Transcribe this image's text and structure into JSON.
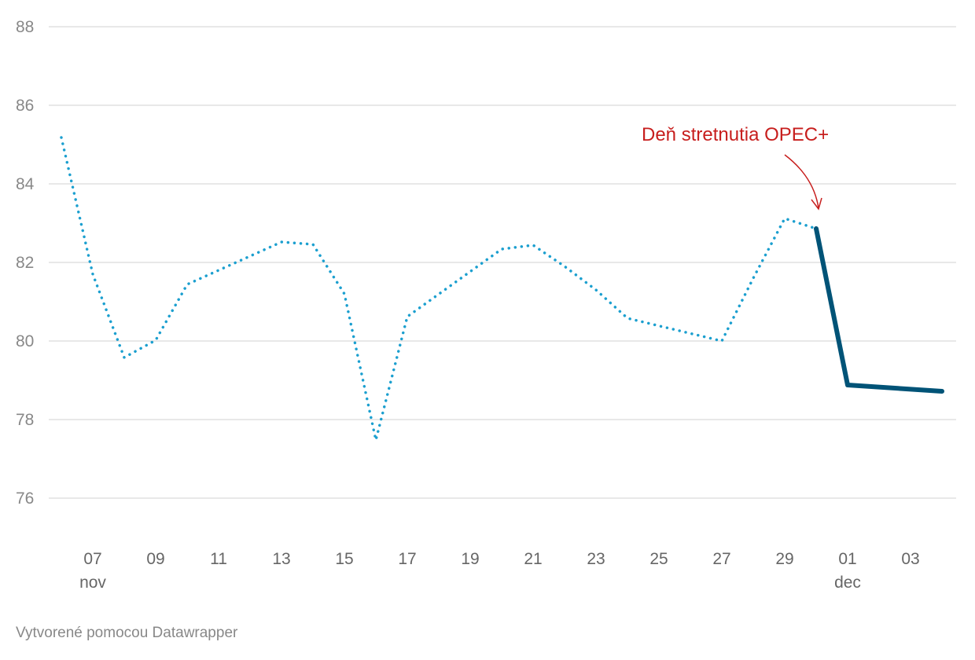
{
  "chart_data": {
    "type": "line",
    "title": "",
    "xlabel": "",
    "ylabel": "",
    "ylim": [
      76,
      88
    ],
    "y_ticks": [
      "88",
      "86",
      "84",
      "82",
      "80",
      "78",
      "76"
    ],
    "grid": true,
    "x_ticks": [
      {
        "day": "07",
        "month": "nov"
      },
      {
        "day": "09",
        "month": ""
      },
      {
        "day": "11",
        "month": ""
      },
      {
        "day": "13",
        "month": ""
      },
      {
        "day": "15",
        "month": ""
      },
      {
        "day": "17",
        "month": ""
      },
      {
        "day": "19",
        "month": ""
      },
      {
        "day": "21",
        "month": ""
      },
      {
        "day": "23",
        "month": ""
      },
      {
        "day": "25",
        "month": ""
      },
      {
        "day": "27",
        "month": ""
      },
      {
        "day": "29",
        "month": ""
      },
      {
        "day": "01",
        "month": "dec"
      },
      {
        "day": "03",
        "month": ""
      }
    ],
    "series": [
      {
        "style": "dotted",
        "color": "#1b9fcf",
        "x": [
          "nov 06",
          "nov 07",
          "nov 08",
          "nov 09",
          "nov 10",
          "nov 13",
          "nov 14",
          "nov 15",
          "nov 16",
          "nov 17",
          "nov 20",
          "nov 21",
          "nov 22",
          "nov 23",
          "nov 24",
          "nov 27",
          "nov 28",
          "nov 29",
          "nov 30"
        ],
        "values": [
          85.18,
          81.7,
          79.58,
          80.02,
          81.44,
          82.52,
          82.46,
          81.2,
          77.48,
          80.62,
          82.34,
          82.44,
          81.9,
          81.3,
          80.58,
          80.0,
          81.6,
          83.12,
          82.86
        ]
      },
      {
        "style": "solid",
        "color": "#005377",
        "x": [
          "nov 30",
          "dec 01",
          "dec 04"
        ],
        "values": [
          82.86,
          78.88,
          78.72
        ]
      }
    ],
    "annotation": {
      "text": "Deň stretnutia OPEC+",
      "target": "nov 30",
      "color": "#c71e1d"
    }
  },
  "footer": "Vytvorené pomocou Datawrapper"
}
